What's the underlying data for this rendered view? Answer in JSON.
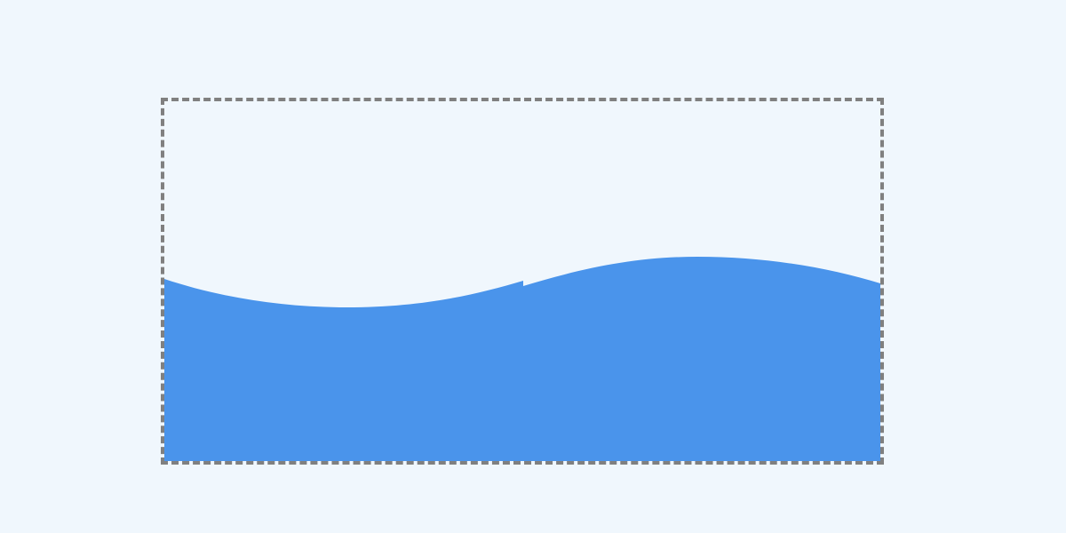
{
  "colors": {
    "background": "#f0f7fd",
    "frame_border": "#808080",
    "wave_fill": "#4a94eb"
  },
  "elements": {
    "frame": "dashed-container",
    "wave": "wave-fill"
  }
}
